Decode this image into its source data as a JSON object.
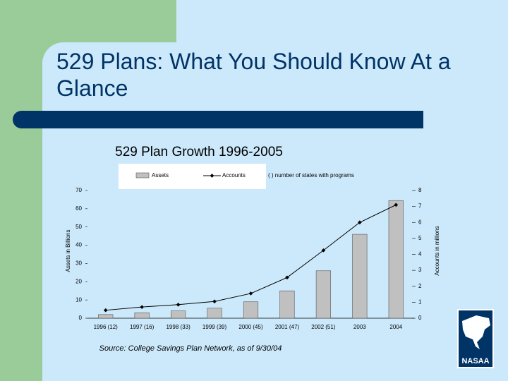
{
  "slide": {
    "title": "529 Plans: What You Should Know At a Glance",
    "source": "Source: College Savings Plan Network, as of 9/30/04",
    "logo": "NASAA"
  },
  "chart_data": {
    "type": "bar",
    "title": "529 Plan Growth 1996-2005",
    "legend_note": "( ) number of states with programs",
    "y_label": "Assets in Billions",
    "y2_label": "Accounts in millions",
    "categories": [
      "1996 (12)",
      "1997 (16)",
      "1998 (33)",
      "1999 (39)",
      "2000 (45)",
      "2001 (47)",
      "2002 (51)",
      "2003",
      "2004"
    ],
    "series": [
      {
        "name": "Assets",
        "color": "#c0c0c0",
        "values": [
          2,
          3,
          4,
          5.5,
          9,
          15,
          26,
          46,
          64.5
        ]
      },
      {
        "name": "Accounts",
        "color": "#000000",
        "axis": "y2",
        "values": [
          0.5,
          0.7,
          0.85,
          1.05,
          1.55,
          2.55,
          4.25,
          6,
          7.1
        ]
      }
    ],
    "ylim": [
      0,
      70
    ],
    "yticks": [
      0,
      10,
      20,
      30,
      40,
      50,
      60,
      70
    ],
    "y2lim": [
      0,
      8
    ],
    "y2ticks": [
      0,
      1,
      2,
      3,
      4,
      5,
      6,
      7,
      8
    ]
  }
}
